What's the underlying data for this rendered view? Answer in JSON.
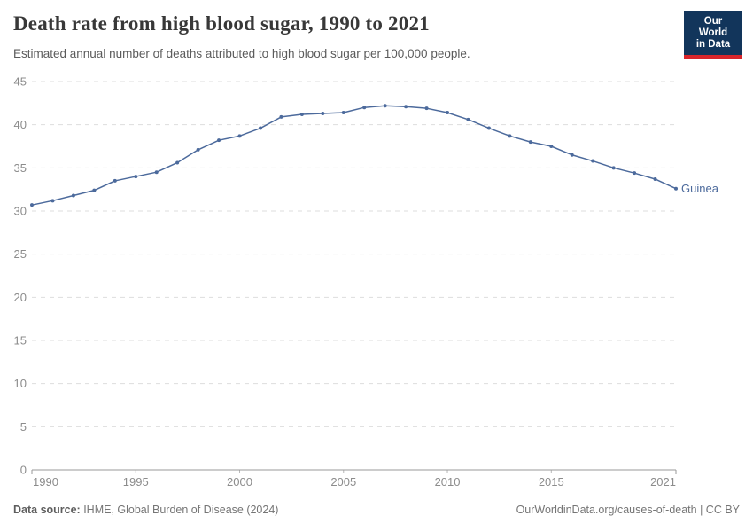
{
  "header": {
    "title": "Death rate from high blood sugar, 1990 to 2021",
    "subtitle": "Estimated annual number of deaths attributed to high blood sugar per 100,000 people.",
    "logo": {
      "line1": "Our World",
      "line2": "in Data"
    }
  },
  "footer": {
    "source_label": "Data source:",
    "source_text": " IHME, Global Burden of Disease (2024)",
    "attribution": "OurWorldinData.org/causes-of-death | CC BY"
  },
  "colors": {
    "line": "#4C6A9C",
    "gridline": "#DDDDDD",
    "axis_line": "#999999",
    "axis_label": "#8C8C8C",
    "title": "#383838",
    "subtitle": "#5B5B5B",
    "footer_text": "#757575",
    "logo_bg": "#12355B",
    "logo_stripe": "#D9252B"
  },
  "chart_data": {
    "type": "line",
    "title": "Death rate from high blood sugar, 1990 to 2021",
    "xlabel": "",
    "ylabel": "",
    "xlim": [
      1990,
      2021
    ],
    "ylim": [
      0,
      45
    ],
    "x_ticks": [
      1990,
      1995,
      2000,
      2005,
      2010,
      2015,
      2021
    ],
    "y_ticks": [
      0,
      5,
      10,
      15,
      20,
      25,
      30,
      35,
      40,
      45
    ],
    "grid": "horizontal-dashed",
    "legend_position": "end-of-line",
    "x": [
      1990,
      1991,
      1992,
      1993,
      1994,
      1995,
      1996,
      1997,
      1998,
      1999,
      2000,
      2001,
      2002,
      2003,
      2004,
      2005,
      2006,
      2007,
      2008,
      2009,
      2010,
      2011,
      2012,
      2013,
      2014,
      2015,
      2016,
      2017,
      2018,
      2019,
      2020,
      2021
    ],
    "series": [
      {
        "name": "Guinea",
        "color": "#4C6A9C",
        "values": [
          30.7,
          31.2,
          31.8,
          32.4,
          33.5,
          34.0,
          34.5,
          35.6,
          37.1,
          38.2,
          38.7,
          39.6,
          40.9,
          41.2,
          41.3,
          41.4,
          42.0,
          42.2,
          42.1,
          41.9,
          41.4,
          40.6,
          39.6,
          38.7,
          38.0,
          37.5,
          36.5,
          35.8,
          35.0,
          34.4,
          33.7,
          32.6
        ]
      }
    ]
  }
}
